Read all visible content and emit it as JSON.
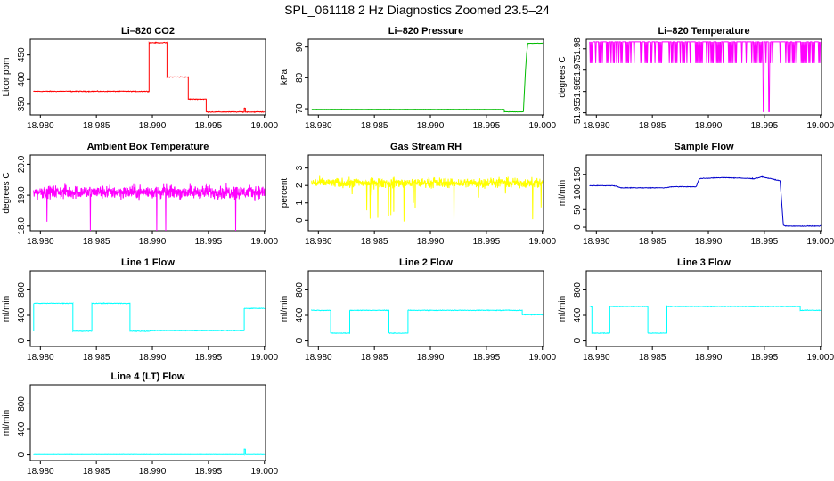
{
  "figure": {
    "title": "SPL_061118  2 Hz Diagnostics Zoomed 23.5–24"
  },
  "chart_data": [
    {
      "type": "line",
      "title": "Li–820 CO2",
      "ylabel": "Licor ppm",
      "xlim": [
        18.9791,
        19.0001
      ],
      "ylim": [
        328,
        482
      ],
      "xticks": [
        "18.980",
        "18.985",
        "18.990",
        "18.995",
        "19.000"
      ],
      "xtick_values": [
        18.98,
        18.985,
        18.99,
        18.995,
        19.0
      ],
      "yticks": [
        "350",
        "400",
        "450"
      ],
      "ytick_values": [
        350,
        400,
        450
      ],
      "color": "#ff0000",
      "noise": 1.2,
      "series": [
        {
          "name": "CO2",
          "x": [
            18.9794,
            18.9897,
            18.9897,
            18.9913,
            18.9913,
            18.9932,
            18.9932,
            18.9948,
            18.9948,
            18.9982,
            18.9982,
            18.9983,
            18.9983,
            19.0
          ],
          " values": [],
          "y": [
            376,
            376,
            475,
            475,
            405,
            405,
            360,
            360,
            334,
            334,
            342,
            342,
            334,
            334
          ]
        }
      ]
    },
    {
      "type": "line",
      "title": "Li–820 Pressure",
      "ylabel": "kPa",
      "xlim": [
        18.9791,
        19.0001
      ],
      "ylim": [
        68,
        92.5
      ],
      "xticks": [
        "18.980",
        "18.985",
        "18.990",
        "18.995",
        "19.000"
      ],
      "xtick_values": [
        18.98,
        18.985,
        18.99,
        18.995,
        19.0
      ],
      "yticks": [
        "70",
        "80",
        "90"
      ],
      "ytick_values": [
        70,
        80,
        90
      ],
      "color": "#00bb00",
      "noise": 0.08,
      "series": [
        {
          "name": "Pressure",
          "x": [
            18.9794,
            18.9966,
            18.9966,
            18.9983,
            18.9985,
            18.9986,
            18.9987,
            19.0
          ],
          "y": [
            69.8,
            69.8,
            69.0,
            69.0,
            83.0,
            88.0,
            91.2,
            91.2
          ]
        }
      ]
    },
    {
      "type": "line",
      "title": "Li–820 Temperature",
      "ylabel": "degrees C",
      "xlim": [
        18.9791,
        19.0001
      ],
      "ylim": [
        51.949,
        51.9845
      ],
      "xticks": [
        "18.980",
        "18.985",
        "18.990",
        "18.995",
        "19.000"
      ],
      "xtick_values": [
        18.98,
        18.985,
        18.99,
        18.995,
        19.0
      ],
      "yticks": [
        "51.95",
        "51.96",
        "51.97",
        "51.98"
      ],
      "ytick_values": [
        51.95,
        51.96,
        51.97,
        51.98
      ],
      "color": "#ff00ff",
      "series": [
        {
          "name": "Temperature",
          "levels": [
            51.9833,
            51.9733
          ],
          "dips": [
            {
              "x": 18.9949,
              "y": 51.9505
            },
            {
              "x": 18.9954,
              "y": 51.9505
            }
          ],
          "y": [
            51.9833,
            51.9733
          ]
        }
      ]
    },
    {
      "type": "line",
      "title": "Ambient Box Temperature",
      "ylabel": "degrees C",
      "xlim": [
        18.9791,
        19.0001
      ],
      "ylim": [
        17.85,
        20.3
      ],
      "xticks": [
        "18.980",
        "18.985",
        "18.990",
        "18.995",
        "19.000"
      ],
      "xtick_values": [
        18.98,
        18.985,
        18.99,
        18.995,
        19.0
      ],
      "yticks": [
        "18.0",
        "19.0",
        "20.0"
      ],
      "ytick_values": [
        18.0,
        19.0,
        20.0
      ],
      "color": "#ff00ff",
      "noise": 0.32,
      "series": [
        {
          "name": "Box Temperature",
          "x": [
            18.9794,
            19.0
          ],
          "y": [
            19.1,
            19.1
          ]
        }
      ]
    },
    {
      "type": "line",
      "title": "Gas Stream RH",
      "ylabel": "percent",
      "xlim": [
        18.9791,
        19.0001
      ],
      "ylim": [
        -0.6,
        3.75
      ],
      "xticks": [
        "18.980",
        "18.985",
        "18.990",
        "18.995",
        "19.000"
      ],
      "xtick_values": [
        18.98,
        18.985,
        18.99,
        18.995,
        19.0
      ],
      "yticks": [
        "0",
        "1",
        "2",
        "3"
      ],
      "ytick_values": [
        0,
        1,
        2,
        3
      ],
      "color": "#ffff00",
      "noise": 0.42,
      "series": [
        {
          "name": "RH",
          "x": [
            18.9794,
            19.0
          ],
          "y": [
            2.15,
            2.15
          ]
        }
      ]
    },
    {
      "type": "line",
      "title": "Sample Flow",
      "ylabel": "ml/min",
      "xlim": [
        18.9791,
        19.0001
      ],
      "ylim": [
        -10,
        205
      ],
      "xticks": [
        "18.980",
        "18.985",
        "18.990",
        "18.995",
        "19.000"
      ],
      "xtick_values": [
        18.98,
        18.985,
        18.99,
        18.995,
        19.0
      ],
      "yticks": [
        "0",
        "50",
        "100",
        "150"
      ],
      "ytick_values": [
        0,
        50,
        100,
        150
      ],
      "color": "#0000cc",
      "noise": 1.4,
      "series": [
        {
          "name": "Sample Flow",
          "x": [
            18.9794,
            18.9816,
            18.9822,
            18.9862,
            18.9867,
            18.9889,
            18.9892,
            18.9913,
            18.9941,
            18.9948,
            18.9964,
            18.9967,
            18.9969,
            19.0
          ],
          "y": [
            118,
            118,
            112,
            112,
            115,
            115,
            138,
            141,
            138,
            143,
            132,
            5,
            3,
            3
          ]
        }
      ]
    },
    {
      "type": "line",
      "title": "Line 1 Flow",
      "ylabel": "ml/min",
      "xlim": [
        18.9791,
        19.0001
      ],
      "ylim": [
        -90,
        1100
      ],
      "xticks": [
        "18.980",
        "18.985",
        "18.990",
        "18.995",
        "19.000"
      ],
      "xtick_values": [
        18.98,
        18.985,
        18.99,
        18.995,
        19.0
      ],
      "yticks": [
        "0",
        "400",
        "800"
      ],
      "ytick_values": [
        0,
        400,
        800
      ],
      "color": "#00ffff",
      "noise": 8,
      "series": [
        {
          "name": "Line 1",
          "x": [
            18.9794,
            18.9794,
            18.9829,
            18.9829,
            18.9846,
            18.9846,
            18.988,
            18.988,
            18.9898,
            18.9898,
            18.9982,
            18.9982,
            19.0
          ],
          "y": [
            150,
            590,
            590,
            150,
            150,
            590,
            590,
            150,
            150,
            160,
            160,
            510,
            510
          ]
        }
      ]
    },
    {
      "type": "line",
      "title": "Line 2 Flow",
      "ylabel": "ml/min",
      "xlim": [
        18.9791,
        19.0001
      ],
      "ylim": [
        -90,
        1100
      ],
      "xticks": [
        "18.980",
        "18.985",
        "18.990",
        "18.995",
        "19.000"
      ],
      "xtick_values": [
        18.98,
        18.985,
        18.99,
        18.995,
        19.0
      ],
      "yticks": [
        "0",
        "400",
        "800"
      ],
      "ytick_values": [
        0,
        400,
        800
      ],
      "color": "#00ffff",
      "noise": 8,
      "series": [
        {
          "name": "Line 2",
          "x": [
            18.9794,
            18.9811,
            18.9811,
            18.9828,
            18.9828,
            18.9863,
            18.9863,
            18.988,
            18.988,
            18.9982,
            18.9982,
            19.0
          ],
          "y": [
            480,
            480,
            120,
            120,
            480,
            480,
            120,
            120,
            480,
            480,
            410,
            410
          ]
        }
      ]
    },
    {
      "type": "line",
      "title": "Line 3 Flow",
      "ylabel": "ml/min",
      "xlim": [
        18.9791,
        19.0001
      ],
      "ylim": [
        -90,
        1100
      ],
      "xticks": [
        "18.980",
        "18.985",
        "18.990",
        "18.995",
        "19.000"
      ],
      "xtick_values": [
        18.98,
        18.985,
        18.99,
        18.995,
        19.0
      ],
      "yticks": [
        "0",
        "400",
        "800"
      ],
      "ytick_values": [
        0,
        400,
        800
      ],
      "color": "#00ffff",
      "noise": 8,
      "series": [
        {
          "name": "Line 3",
          "x": [
            18.9794,
            18.9794,
            18.9796,
            18.9796,
            18.9812,
            18.9812,
            18.9846,
            18.9846,
            18.9863,
            18.9863,
            18.9982,
            18.9982,
            19.0
          ],
          "y": [
            540,
            540,
            540,
            120,
            120,
            540,
            540,
            120,
            120,
            540,
            540,
            480,
            480
          ]
        }
      ]
    },
    {
      "type": "line",
      "title": "Line 4 (LT) Flow",
      "ylabel": "ml/min",
      "xlim": [
        18.9791,
        19.0001
      ],
      "ylim": [
        -90,
        1100
      ],
      "xticks": [
        "18.980",
        "18.985",
        "18.990",
        "18.995",
        "19.000"
      ],
      "xtick_values": [
        18.98,
        18.985,
        18.99,
        18.995,
        19.0
      ],
      "yticks": [
        "0",
        "400",
        "800"
      ],
      "ytick_values": [
        0,
        400,
        800
      ],
      "color": "#00ffff",
      "noise": 3,
      "series": [
        {
          "name": "Line 4 (LT)",
          "x": [
            18.9794,
            18.9982,
            18.9982,
            18.9983,
            18.9983,
            19.0
          ],
          "y": [
            5,
            5,
            90,
            90,
            5,
            5
          ]
        }
      ]
    }
  ]
}
